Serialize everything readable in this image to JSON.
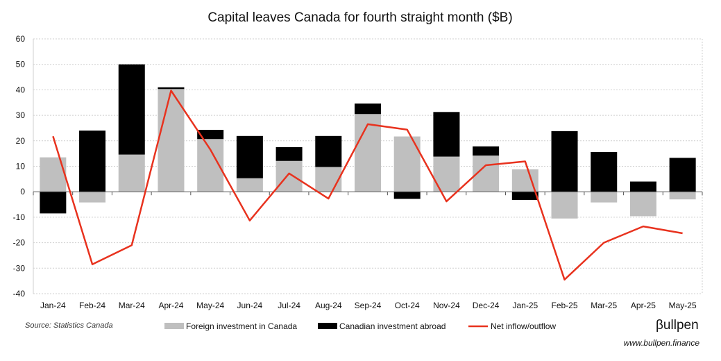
{
  "chart_data": {
    "type": "bar",
    "title": "Capital leaves Canada for fourth straight month ($B)",
    "categories": [
      "Jan-24",
      "Feb-24",
      "Mar-24",
      "Apr-24",
      "May-24",
      "Jun-24",
      "Jul-24",
      "Aug-24",
      "Sep-24",
      "Oct-24",
      "Nov-24",
      "Dec-24",
      "Jan-25",
      "Feb-25",
      "Mar-25",
      "Apr-25",
      "May-25"
    ],
    "ylim": [
      -40,
      60
    ],
    "yticks": [
      -40,
      -30,
      -20,
      -10,
      0,
      10,
      20,
      30,
      40,
      50,
      60
    ],
    "grid": true,
    "stacked": true,
    "legend_position": "bottom",
    "series": [
      {
        "name": "Foreign investment in Canada",
        "kind": "bar",
        "color": "#bfbfbf",
        "values": [
          13.5,
          -4.2,
          14.6,
          40.3,
          20.7,
          5.3,
          12.1,
          9.7,
          30.5,
          21.7,
          13.8,
          14.2,
          8.8,
          -10.5,
          -4.2,
          -9.6,
          -3.0
        ]
      },
      {
        "name": "Canadian investment abroad",
        "kind": "bar",
        "color": "#000000",
        "values": [
          -8.5,
          24.0,
          35.4,
          0.7,
          3.6,
          16.6,
          5.4,
          12.2,
          4.1,
          -2.8,
          17.5,
          3.6,
          -3.2,
          23.8,
          15.6,
          4.0,
          13.3
        ]
      },
      {
        "name": "Net inflow/outflow",
        "kind": "line",
        "color": "#e8321e",
        "values": [
          21.8,
          -28.5,
          -21.0,
          39.7,
          16.5,
          -11.3,
          7.2,
          -2.7,
          26.5,
          24.4,
          -3.8,
          10.4,
          11.9,
          -34.5,
          -20.0,
          -13.6,
          -16.3
        ]
      }
    ],
    "source": "Source: Statistics Canada",
    "brand": "βullpen",
    "url": "www.bullpen.finance"
  }
}
